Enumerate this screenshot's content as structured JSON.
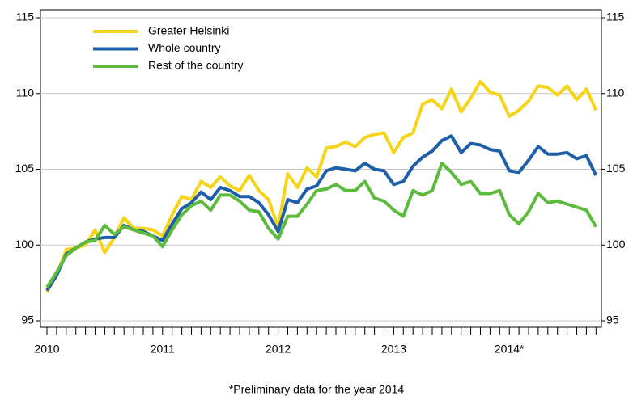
{
  "chart_data": {
    "type": "line",
    "categories": [
      "2010",
      null,
      null,
      null,
      null,
      null,
      null,
      null,
      null,
      null,
      null,
      null,
      "2011",
      null,
      null,
      null,
      null,
      null,
      null,
      null,
      null,
      null,
      null,
      null,
      "2012",
      null,
      null,
      null,
      null,
      null,
      null,
      null,
      null,
      null,
      null,
      null,
      "2013",
      null,
      null,
      null,
      null,
      null,
      null,
      null,
      null,
      null,
      null,
      null,
      "2014*",
      null,
      null,
      null,
      null,
      null,
      null,
      null,
      null,
      null
    ],
    "series": [
      {
        "name": "Greater Helsinki",
        "color": "#f7d417",
        "values": [
          96.9,
          98.0,
          99.7,
          99.8,
          100.0,
          101.0,
          99.5,
          100.5,
          101.8,
          101.1,
          101.1,
          101.0,
          100.6,
          102.0,
          103.2,
          103.0,
          104.2,
          103.8,
          104.5,
          103.9,
          103.6,
          104.6,
          103.6,
          103.0,
          101.2,
          104.7,
          103.8,
          105.1,
          104.5,
          106.4,
          106.5,
          106.8,
          106.5,
          107.1,
          107.3,
          107.4,
          106.1,
          107.1,
          107.4,
          109.3,
          109.6,
          109.0,
          110.3,
          108.8,
          109.7,
          110.8,
          110.1,
          109.9,
          108.5,
          108.9,
          109.5,
          110.5,
          110.4,
          109.9,
          110.5,
          109.6,
          110.3,
          108.9
        ]
      },
      {
        "name": "Whole country",
        "color": "#1f5fa9",
        "values": [
          97.0,
          98.0,
          99.4,
          99.8,
          100.2,
          100.4,
          100.5,
          100.5,
          101.3,
          101.0,
          100.9,
          100.6,
          100.3,
          101.4,
          102.4,
          102.8,
          103.5,
          103.0,
          103.8,
          103.6,
          103.2,
          103.2,
          102.8,
          102.0,
          100.9,
          103.0,
          102.8,
          103.7,
          103.9,
          104.9,
          105.1,
          105.0,
          104.9,
          105.4,
          105.0,
          104.9,
          104.0,
          104.2,
          105.2,
          105.8,
          106.2,
          106.9,
          107.2,
          106.1,
          106.7,
          106.6,
          106.3,
          106.2,
          104.9,
          104.8,
          105.6,
          106.5,
          106.0,
          106.0,
          106.1,
          105.7,
          105.9,
          104.6
        ]
      },
      {
        "name": "Rest of the country",
        "color": "#5cbb3c",
        "values": [
          97.2,
          98.2,
          99.3,
          99.8,
          100.2,
          100.3,
          101.3,
          100.7,
          101.2,
          101.0,
          100.8,
          100.6,
          99.9,
          101.0,
          102.0,
          102.6,
          102.9,
          102.3,
          103.3,
          103.3,
          102.9,
          102.3,
          102.2,
          101.1,
          100.4,
          101.9,
          101.9,
          102.7,
          103.6,
          103.7,
          104.0,
          103.6,
          103.6,
          104.2,
          103.1,
          102.9,
          102.3,
          101.9,
          103.6,
          103.3,
          103.6,
          105.4,
          104.8,
          104.0,
          104.2,
          103.4,
          103.4,
          103.6,
          102.0,
          101.4,
          102.2,
          103.4,
          102.8,
          102.9,
          102.7,
          102.5,
          102.3,
          101.2
        ]
      }
    ],
    "ylim": [
      95,
      115
    ],
    "yticks": [
      95,
      100,
      105,
      110,
      115
    ],
    "grid": true,
    "legend": "top-left",
    "footnote": "*Preliminary data for the year 2014"
  }
}
